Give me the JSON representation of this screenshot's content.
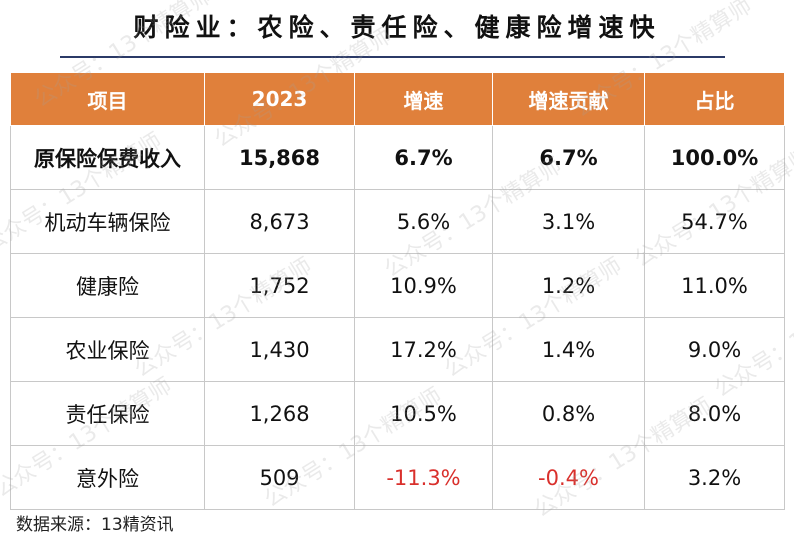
{
  "title": "财险业：农险、责任险、健康险增速快",
  "table": {
    "headers": [
      "项目",
      "2023",
      "增速",
      "增速贡献",
      "占比"
    ],
    "rows": [
      {
        "name": "原保险保费收入",
        "value": "15,868",
        "growth": "6.7%",
        "contribution": "6.7%",
        "share": "100.0%",
        "bold": true
      },
      {
        "name": "机动车辆保险",
        "value": "8,673",
        "growth": "5.6%",
        "contribution": "3.1%",
        "share": "54.7%"
      },
      {
        "name": "健康险",
        "value": "1,752",
        "growth": "10.9%",
        "contribution": "1.2%",
        "share": "11.0%"
      },
      {
        "name": "农业保险",
        "value": "1,430",
        "growth": "17.2%",
        "contribution": "1.4%",
        "share": "9.0%"
      },
      {
        "name": "责任保险",
        "value": "1,268",
        "growth": "10.5%",
        "contribution": "0.8%",
        "share": "8.0%"
      },
      {
        "name": "意外险",
        "value": "509",
        "growth": "-11.3%",
        "contribution": "-0.4%",
        "share": "3.2%"
      }
    ]
  },
  "source": "数据来源：13精资讯",
  "watermark": "公众号：13个精算师",
  "colors": {
    "header_bg": "#e0803b",
    "negative": "#d9302c",
    "title_rule": "#2b3a67"
  }
}
